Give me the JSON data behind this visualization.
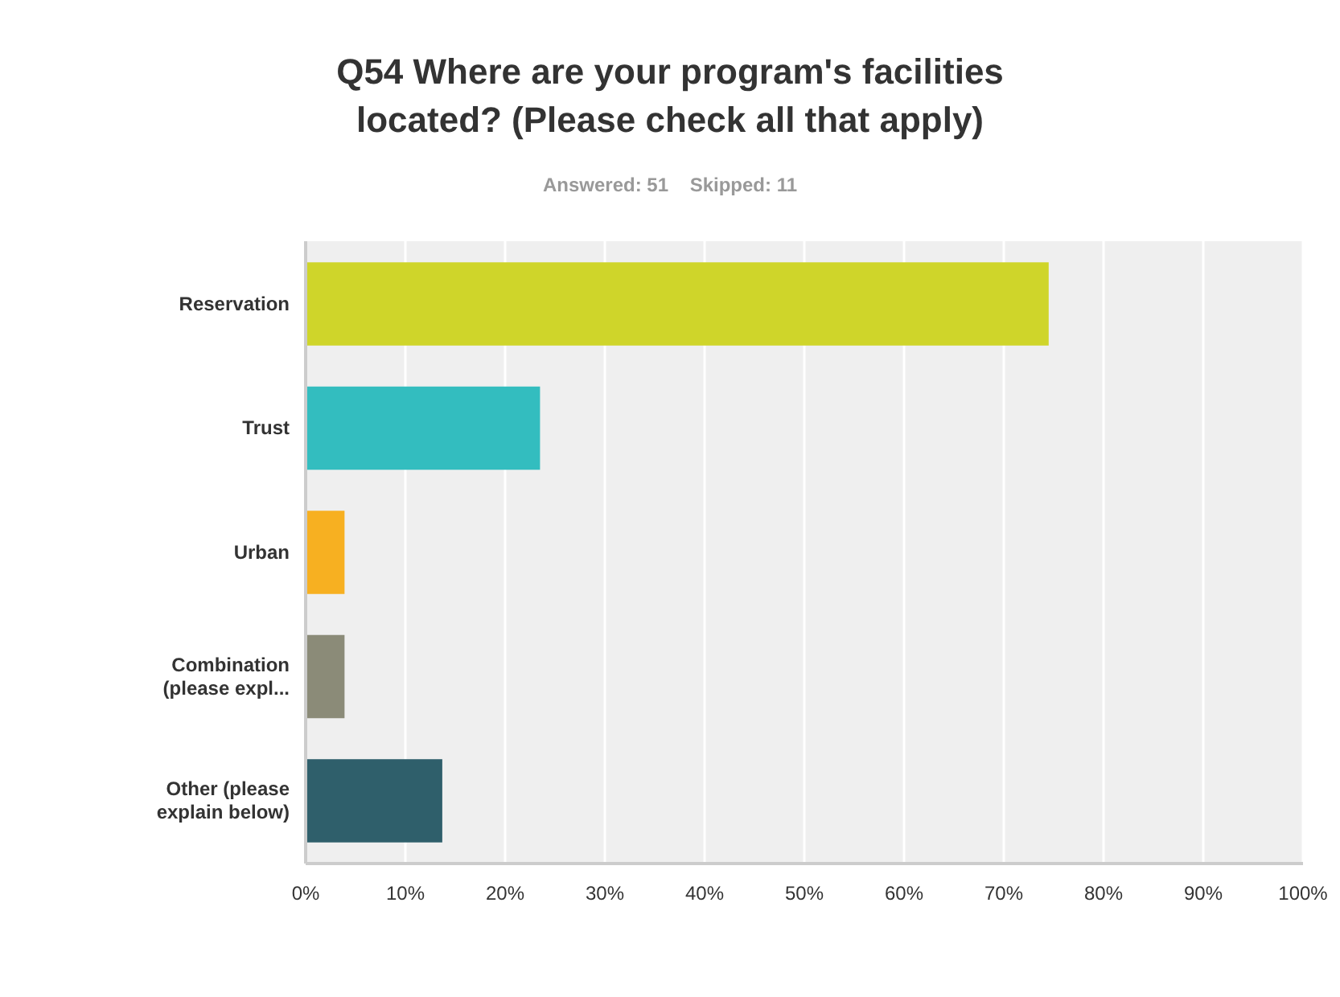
{
  "chart_data": {
    "type": "bar",
    "orientation": "horizontal",
    "title": "Q54 Where are your program's facilities located? (Please check all that apply)",
    "subtitle": "Answered: 51    Skipped: 11",
    "categories": [
      "Reservation",
      "Trust",
      "Urban",
      "Combination (please expl...",
      "Other (please explain below)"
    ],
    "values": [
      74.5,
      23.5,
      3.9,
      3.9,
      13.7
    ],
    "colors": [
      "#cfd52a",
      "#33bdbf",
      "#f7b021",
      "#8b8b78",
      "#2f5f6b"
    ],
    "xlim": [
      0,
      100
    ],
    "xticks": [
      {
        "value": 0,
        "label": "0%"
      },
      {
        "value": 10,
        "label": "10%"
      },
      {
        "value": 20,
        "label": "20%"
      },
      {
        "value": 30,
        "label": "30%"
      },
      {
        "value": 40,
        "label": "40%"
      },
      {
        "value": 50,
        "label": "50%"
      },
      {
        "value": 60,
        "label": "60%"
      },
      {
        "value": 70,
        "label": "70%"
      },
      {
        "value": 80,
        "label": "80%"
      },
      {
        "value": 90,
        "label": "90%"
      },
      {
        "value": 100,
        "label": "100%"
      }
    ],
    "grid": "x"
  }
}
